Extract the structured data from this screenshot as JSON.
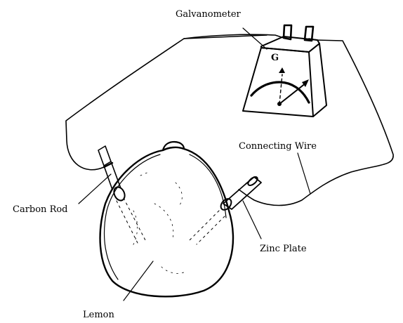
{
  "labels": {
    "galvanometer": "Galvanometer",
    "connecting_wire": "Connecting Wire",
    "carbon_rod": "Carbon Rod",
    "zinc_plate": "Zinc Plate",
    "lemon": "Lemon",
    "meter_symbol": "G"
  }
}
